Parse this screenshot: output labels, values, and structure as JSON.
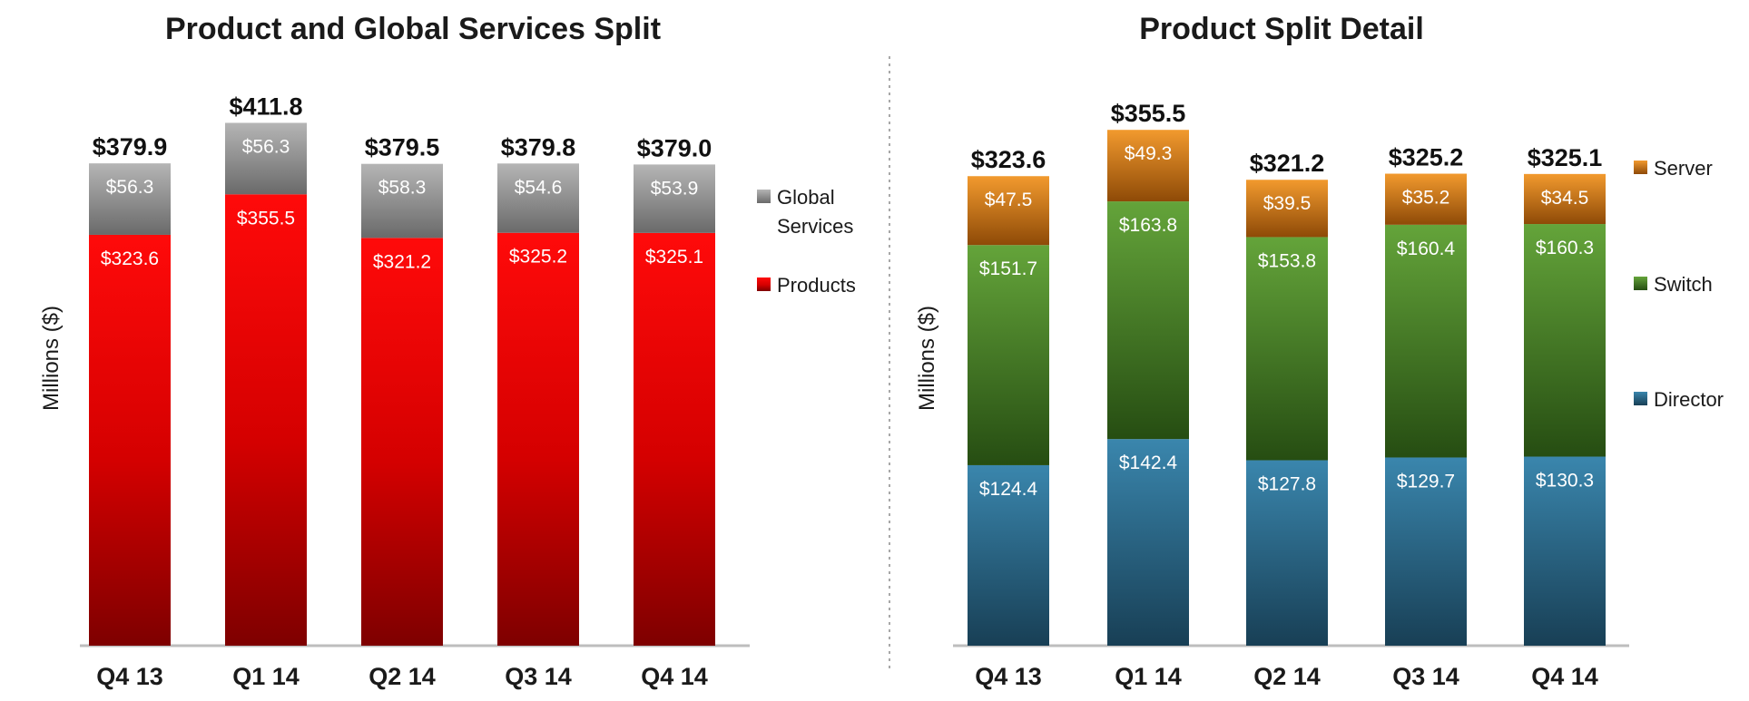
{
  "chart_data": [
    {
      "type": "bar",
      "stacked": true,
      "title": "Product and Global Services Split",
      "ylabel": "Millions ($)",
      "xlabel": "",
      "categories": [
        "Q4 13",
        "Q1 14",
        "Q2 14",
        "Q3 14",
        "Q4 14"
      ],
      "series": [
        {
          "name": "Products",
          "color": "#e00000",
          "values": [
            323.6,
            355.5,
            321.2,
            325.2,
            325.1
          ],
          "labels": [
            "$323.6",
            "$355.5",
            "$321.2",
            "$325.2",
            "$325.1"
          ]
        },
        {
          "name": "Global Services",
          "color": "#8c8c8c",
          "values": [
            56.3,
            56.3,
            58.3,
            54.6,
            53.9
          ],
          "labels": [
            "$56.3",
            "$56.3",
            "$58.3",
            "$54.6",
            "$53.9"
          ]
        }
      ],
      "totals": [
        379.9,
        411.8,
        379.5,
        379.8,
        379.0
      ],
      "total_labels": [
        "$379.9",
        "$411.8",
        "$379.5",
        "$379.8",
        "$379.0"
      ],
      "legend": [
        "Global Services",
        "Products"
      ],
      "legend_position": "right",
      "grid": false,
      "ylim": [
        0,
        430
      ]
    },
    {
      "type": "bar",
      "stacked": true,
      "title": "Product Split Detail",
      "ylabel": "Millions ($)",
      "xlabel": "",
      "categories": [
        "Q4 13",
        "Q1 14",
        "Q2 14",
        "Q3 14",
        "Q4 14"
      ],
      "series": [
        {
          "name": "Director",
          "color": "#2f6d8f",
          "values": [
            124.4,
            142.4,
            127.8,
            129.7,
            130.3
          ],
          "labels": [
            "$124.4",
            "$142.4",
            "$127.8",
            "$129.7",
            "$130.3"
          ]
        },
        {
          "name": "Switch",
          "color": "#4e8a2a",
          "values": [
            151.7,
            163.8,
            153.8,
            160.4,
            160.3
          ],
          "labels": [
            "$151.7",
            "$163.8",
            "$153.8",
            "$160.4",
            "$160.3"
          ]
        },
        {
          "name": "Server",
          "color": "#d0740f",
          "values": [
            47.5,
            49.3,
            39.5,
            35.2,
            34.5
          ],
          "labels": [
            "$47.5",
            "$49.3",
            "$39.5",
            "$35.2",
            "$34.5"
          ]
        }
      ],
      "totals": [
        323.6,
        355.5,
        321.2,
        325.2,
        325.1
      ],
      "total_labels": [
        "$323.6",
        "$355.5",
        "$321.2",
        "$325.2",
        "$325.1"
      ],
      "legend": [
        "Server",
        "Switch",
        "Director"
      ],
      "legend_position": "right",
      "grid": false,
      "ylim": [
        0,
        375
      ]
    }
  ]
}
